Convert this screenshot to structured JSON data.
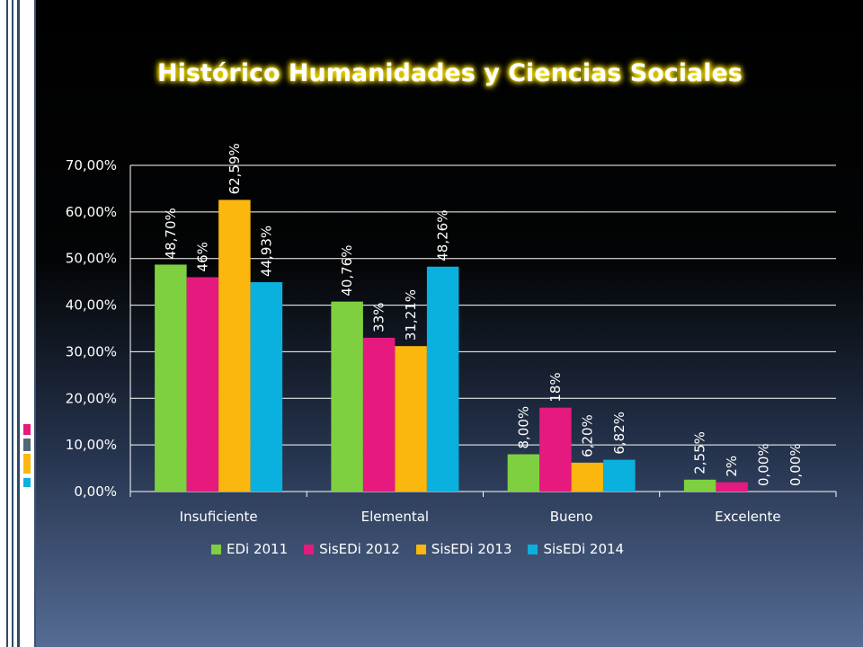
{
  "slide": {
    "title": "Histórico  Humanidades y Ciencias Sociales",
    "colors": {
      "background": "#000000",
      "text": "#ffffff",
      "title_glow": "#fbe400"
    }
  },
  "chart_data": {
    "type": "bar",
    "categories": [
      "Insuficiente",
      "Elemental",
      "Bueno",
      "Excelente"
    ],
    "series": [
      {
        "name": "EDi 2011",
        "color": "#7ed040",
        "values": [
          48.7,
          40.76,
          8.0,
          2.55
        ],
        "labels": [
          "48,70%",
          "40,76%",
          "8,00%",
          "2,55%"
        ]
      },
      {
        "name": "SisEDi 2012",
        "color": "#e6197e",
        "values": [
          46,
          33,
          18,
          2
        ],
        "labels": [
          "46%",
          "33%",
          "18%",
          "2%"
        ]
      },
      {
        "name": "SisEDi 2013",
        "color": "#fbb70e",
        "values": [
          62.59,
          31.21,
          6.2,
          0
        ],
        "labels": [
          "62,59%",
          "31,21%",
          "6,20%",
          "0,00%"
        ]
      },
      {
        "name": "SisEDi 2014",
        "color": "#0ab0de",
        "values": [
          44.93,
          48.26,
          6.82,
          0
        ],
        "labels": [
          "44,93%",
          "48,26%",
          "6,82%",
          "0,00%"
        ]
      }
    ],
    "yticks": [
      "0,00%",
      "10,00%",
      "20,00%",
      "30,00%",
      "40,00%",
      "50,00%",
      "60,00%",
      "70,00%"
    ],
    "ylim": [
      0,
      70
    ],
    "grid": true,
    "legend": "bottom"
  }
}
